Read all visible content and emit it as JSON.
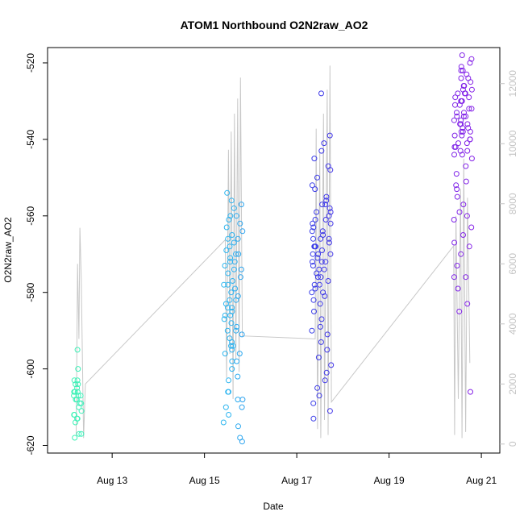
{
  "chart_data": {
    "type": "scatter",
    "title": "ATOM1 Northbound O2N2raw_AO2",
    "xlabel": "Date",
    "ylabel": "O2N2raw_AO2",
    "x_ticks": [
      "Aug 13",
      "Aug 15",
      "Aug 17",
      "Aug 19",
      "Aug 21"
    ],
    "x_tick_days": [
      13,
      15,
      17,
      19,
      21
    ],
    "xlim_days": [
      11.6,
      21.4
    ],
    "y_ticks": [
      -520,
      -540,
      -560,
      -580,
      -600,
      -620
    ],
    "ylim": [
      -622,
      -516
    ],
    "y2_ticks": [
      0,
      2000,
      4000,
      6000,
      8000,
      10000,
      12000
    ],
    "y2lim": [
      -300,
      13200
    ],
    "grid": false,
    "legend": "none",
    "colors": {
      "series_line": "#c8c8c8",
      "right_axis": "#c4c4c4",
      "point_gradient": [
        "#3ff5b0",
        "#33d8e6",
        "#2bb2f0",
        "#3a3ae8",
        "#6a2be8",
        "#8a22e8"
      ]
    },
    "secondary_line": [
      [
        12.22,
        300
      ],
      [
        12.25,
        6000
      ],
      [
        12.28,
        3500
      ],
      [
        12.3,
        7200
      ],
      [
        12.33,
        5500
      ],
      [
        12.38,
        200
      ],
      [
        12.42,
        2000
      ],
      [
        15.45,
        6800
      ],
      [
        15.48,
        2200
      ],
      [
        15.52,
        9800
      ],
      [
        15.55,
        3000
      ],
      [
        15.58,
        10400
      ],
      [
        15.62,
        1500
      ],
      [
        15.65,
        11000
      ],
      [
        15.68,
        2800
      ],
      [
        15.72,
        11500
      ],
      [
        15.75,
        2400
      ],
      [
        15.78,
        12200
      ],
      [
        15.82,
        3600
      ],
      [
        17.4,
        3500
      ],
      [
        17.42,
        10500
      ],
      [
        17.45,
        500
      ],
      [
        17.5,
        9700
      ],
      [
        17.52,
        200
      ],
      [
        17.58,
        11000
      ],
      [
        17.6,
        800
      ],
      [
        17.66,
        11800
      ],
      [
        17.68,
        300
      ],
      [
        17.72,
        12600
      ],
      [
        17.75,
        1400
      ],
      [
        20.4,
        6600
      ],
      [
        20.42,
        300
      ],
      [
        20.45,
        7600
      ],
      [
        20.5,
        1500
      ],
      [
        20.55,
        8500
      ],
      [
        20.58,
        200
      ],
      [
        20.62,
        9500
      ],
      [
        20.66,
        400
      ],
      [
        20.7,
        8200
      ],
      [
        20.75,
        2700
      ]
    ],
    "series": [
      {
        "x_center": 12.25,
        "x_spread": 0.18,
        "y_values": [
          -595,
          -600,
          -603,
          -604,
          -605,
          -606,
          -606,
          -607,
          -607,
          -608,
          -608,
          -609,
          -610,
          -612,
          -613,
          -614,
          -617,
          -618,
          -604,
          -603,
          -606,
          -607,
          -609,
          -611,
          -612,
          -613,
          -617
        ]
      },
      {
        "x_center": 15.62,
        "x_spread": 0.42,
        "y_values": [
          -554,
          -556,
          -558,
          -560,
          -561,
          -563,
          -564,
          -565,
          -566,
          -567,
          -568,
          -569,
          -570,
          -571,
          -572,
          -573,
          -574,
          -575,
          -576,
          -577,
          -578,
          -579,
          -580,
          -581,
          -582,
          -583,
          -584,
          -585,
          -586,
          -587,
          -588,
          -589,
          -590,
          -591,
          -592,
          -593,
          -594,
          -595,
          -596,
          -598,
          -600,
          -603,
          -606,
          -608,
          -610,
          -612,
          -615,
          -618,
          -619,
          -557,
          -562,
          -566,
          -570,
          -574,
          -578,
          -582,
          -586,
          -590,
          -594,
          -598,
          -602,
          -606,
          -610,
          -614,
          -560,
          -572,
          -584,
          -596,
          -608
        ]
      },
      {
        "x_center": 17.55,
        "x_spread": 0.45,
        "y_values": [
          -528,
          -539,
          -541,
          -543,
          -545,
          -547,
          -548,
          -550,
          -552,
          -553,
          -555,
          -556,
          -557,
          -558,
          -559,
          -560,
          -561,
          -562,
          -563,
          -564,
          -565,
          -566,
          -567,
          -568,
          -569,
          -570,
          -571,
          -572,
          -573,
          -574,
          -575,
          -576,
          -577,
          -578,
          -579,
          -580,
          -581,
          -582,
          -583,
          -585,
          -587,
          -589,
          -590,
          -591,
          -593,
          -595,
          -597,
          -599,
          -601,
          -603,
          -605,
          -607,
          -609,
          -611,
          -613,
          -566,
          -568,
          -570,
          -572,
          -574,
          -576,
          -578,
          -580,
          -562,
          -564,
          -566,
          -568,
          -570,
          -572,
          -557,
          -559,
          -561
        ]
      },
      {
        "x_center": 20.6,
        "x_spread": 0.4,
        "y_values": [
          -518,
          -519,
          -520,
          -521,
          -522,
          -523,
          -524,
          -525,
          -526,
          -527,
          -528,
          -529,
          -530,
          -531,
          -532,
          -533,
          -534,
          -535,
          -536,
          -537,
          -538,
          -539,
          -540,
          -541,
          -542,
          -543,
          -544,
          -545,
          -547,
          -549,
          -551,
          -553,
          -555,
          -557,
          -559,
          -561,
          -563,
          -565,
          -567,
          -570,
          -573,
          -576,
          -579,
          -583,
          -585,
          -606,
          -528,
          -530,
          -532,
          -534,
          -536,
          -538,
          -540,
          -526,
          -529,
          -533,
          -537,
          -541,
          -524,
          -527,
          -531,
          -535,
          -539,
          -543,
          -530,
          -534,
          -538,
          -542,
          -522,
          -528,
          -536,
          -544,
          -552,
          -560,
          -568,
          -576
        ]
      }
    ]
  }
}
